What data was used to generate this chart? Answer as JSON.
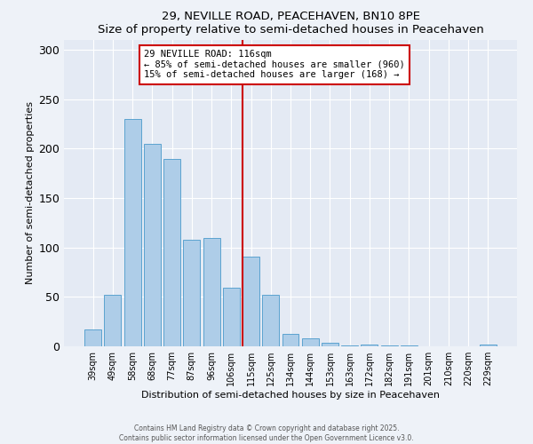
{
  "title": "29, NEVILLE ROAD, PEACEHAVEN, BN10 8PE",
  "subtitle": "Size of property relative to semi-detached houses in Peacehaven",
  "xlabel": "Distribution of semi-detached houses by size in Peacehaven",
  "ylabel": "Number of semi-detached properties",
  "bar_labels": [
    "39sqm",
    "49sqm",
    "58sqm",
    "68sqm",
    "77sqm",
    "87sqm",
    "96sqm",
    "106sqm",
    "115sqm",
    "125sqm",
    "134sqm",
    "144sqm",
    "153sqm",
    "163sqm",
    "172sqm",
    "182sqm",
    "191sqm",
    "201sqm",
    "210sqm",
    "220sqm",
    "229sqm"
  ],
  "bar_values": [
    17,
    52,
    230,
    205,
    190,
    108,
    110,
    59,
    91,
    52,
    13,
    8,
    4,
    1,
    2,
    1,
    1,
    0,
    0,
    0,
    2
  ],
  "bar_color": "#aecde8",
  "bar_edge_color": "#5ba3d0",
  "vline_color": "#cc0000",
  "annotation_title": "29 NEVILLE ROAD: 116sqm",
  "annotation_line1": "← 85% of semi-detached houses are smaller (960)",
  "annotation_line2": "15% of semi-detached houses are larger (168) →",
  "annotation_box_color": "#ffffff",
  "annotation_box_edge": "#cc0000",
  "ylim": [
    0,
    310
  ],
  "yticks": [
    0,
    50,
    100,
    150,
    200,
    250,
    300
  ],
  "footer1": "Contains HM Land Registry data © Crown copyright and database right 2025.",
  "footer2": "Contains public sector information licensed under the Open Government Licence v3.0.",
  "bg_color": "#eef2f8",
  "plot_bg_color": "#e4eaf4"
}
